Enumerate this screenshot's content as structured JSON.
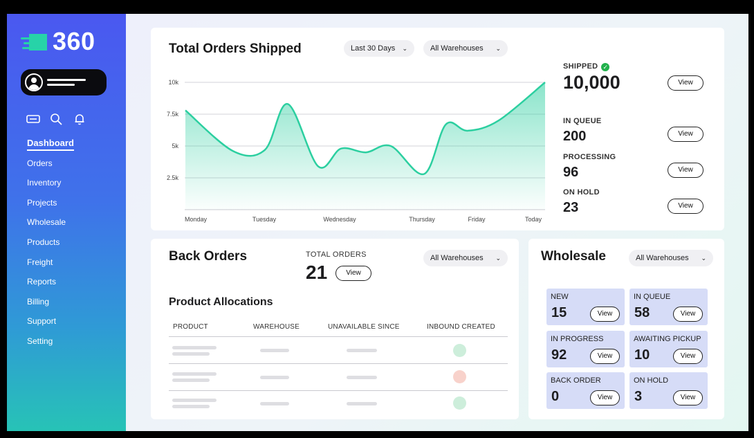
{
  "brand": {
    "name": "360"
  },
  "sidebar": {
    "icons": [
      "ticket-icon",
      "search-icon",
      "bell-icon"
    ],
    "items": [
      {
        "label": "Dashboard",
        "active": true
      },
      {
        "label": "Orders"
      },
      {
        "label": "Inventory"
      },
      {
        "label": "Projects"
      },
      {
        "label": "Wholesale"
      },
      {
        "label": "Products"
      },
      {
        "label": "Freight"
      },
      {
        "label": "Reports"
      },
      {
        "label": "Billing"
      },
      {
        "label": "Support"
      },
      {
        "label": "Setting"
      }
    ]
  },
  "orders_shipped": {
    "title": "Total Orders Shipped",
    "date_filter": "Last 30 Days",
    "warehouse_filter": "All Warehouses",
    "stats": [
      {
        "label": "SHIPPED",
        "value": "10,000",
        "view": "View"
      },
      {
        "label": "IN QUEUE",
        "value": "200",
        "view": "View"
      },
      {
        "label": "PROCESSING",
        "value": "96",
        "view": "View"
      },
      {
        "label": "ON HOLD",
        "value": "23",
        "view": "View"
      }
    ]
  },
  "chart_data": {
    "type": "area",
    "x": [
      "Monday",
      "Tuesday",
      "Wednesday",
      "Thursday",
      "Friday",
      "Today"
    ],
    "y_ticks": [
      "10k",
      "7.5k",
      "5k",
      "2.5k"
    ],
    "ylim": [
      0,
      10000
    ],
    "series": [
      {
        "points": [
          [
            0.0,
            7800
          ],
          [
            0.6,
            4600
          ],
          [
            1.0,
            4700
          ],
          [
            1.3,
            8300
          ],
          [
            1.7,
            3400
          ],
          [
            2.0,
            4800
          ],
          [
            2.3,
            4500
          ],
          [
            2.6,
            5000
          ],
          [
            3.0,
            2800
          ],
          [
            3.4,
            6700
          ],
          [
            3.8,
            6200
          ],
          [
            4.3,
            7000
          ],
          [
            5.0,
            10000
          ]
        ]
      }
    ],
    "grid": true,
    "color": "#2ccfa0"
  },
  "back_orders": {
    "title": "Back Orders",
    "total_label": "TOTAL ORDERS",
    "total_value": "21",
    "view": "View",
    "warehouse_filter": "All Warehouses",
    "allocations_title": "Product Allocations",
    "columns": [
      "PRODUCT",
      "WAREHOUSE",
      "UNAVAILABLE SINCE",
      "INBOUND CREATED"
    ],
    "row_status_colors": [
      "#cdeedb",
      "#f8d2cb",
      "#cdeedb"
    ]
  },
  "wholesale": {
    "title": "Wholesale",
    "warehouse_filter": "All Warehouses",
    "tiles": [
      {
        "label": "NEW",
        "value": "15",
        "view": "View"
      },
      {
        "label": "IN QUEUE",
        "value": "58",
        "view": "View"
      },
      {
        "label": "IN PROGRESS",
        "value": "92",
        "view": "View"
      },
      {
        "label": "AWAITING PICKUP",
        "value": "10",
        "view": "View"
      },
      {
        "label": "BACK ORDER",
        "value": "0",
        "view": "View"
      },
      {
        "label": "ON HOLD",
        "value": "3",
        "view": "View"
      }
    ]
  }
}
